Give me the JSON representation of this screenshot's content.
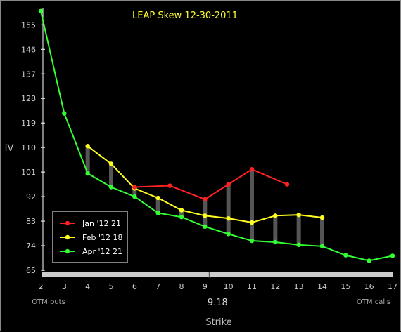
{
  "chart_data": {
    "type": "line",
    "title": "LEAP Skew 12-30-2011",
    "xlabel": "Strike",
    "ylabel": "IV",
    "x_ticks": [
      2,
      3,
      4,
      5,
      6,
      7,
      8,
      9,
      10,
      11,
      12,
      13,
      14,
      15,
      16,
      17
    ],
    "y_ticks": [
      65,
      74,
      83,
      92,
      101,
      110,
      119,
      128,
      137,
      146,
      155
    ],
    "xlim": [
      2,
      17
    ],
    "ylim": [
      65,
      161
    ],
    "underlying_price": "9.18",
    "underlying_value": 9.18,
    "corner_labels": {
      "left": "OTM puts",
      "right": "OTM calls"
    },
    "legend_position": "bottom-left",
    "series": [
      {
        "name": "Jan '12 21",
        "color": "#ff2222",
        "points": [
          [
            6,
            95.5
          ],
          [
            7.5,
            96
          ],
          [
            9,
            91
          ],
          [
            10,
            96.5
          ],
          [
            11,
            102
          ],
          [
            12.5,
            96.5
          ]
        ]
      },
      {
        "name": "Feb '12 18",
        "color": "#ffff22",
        "points": [
          [
            4,
            110.5
          ],
          [
            5,
            104
          ],
          [
            6,
            95
          ],
          [
            7,
            91.5
          ],
          [
            8,
            87
          ],
          [
            9,
            85
          ],
          [
            10,
            84
          ],
          [
            11,
            82.5
          ],
          [
            12,
            85
          ],
          [
            13,
            85.3
          ],
          [
            14,
            84.3
          ]
        ]
      },
      {
        "name": "Apr '12 21",
        "color": "#33ff33",
        "points": [
          [
            2,
            160
          ],
          [
            3,
            122.5
          ],
          [
            4,
            100.5
          ],
          [
            5,
            95.5
          ],
          [
            6,
            92
          ],
          [
            7,
            86
          ],
          [
            8,
            84.5
          ],
          [
            9,
            81
          ],
          [
            10,
            78.3
          ],
          [
            11,
            75.8
          ],
          [
            12,
            75.3
          ],
          [
            13,
            74.3
          ],
          [
            14,
            73.8
          ],
          [
            15,
            70.5
          ],
          [
            16,
            68.5
          ],
          [
            17,
            70.3
          ]
        ]
      }
    ],
    "spread_bars": [
      {
        "x": 4,
        "low": 100.5,
        "high": 110.5
      },
      {
        "x": 5,
        "low": 95.5,
        "high": 104
      },
      {
        "x": 6,
        "low": 92,
        "high": 95.5
      },
      {
        "x": 7,
        "low": 86,
        "high": 91.5
      },
      {
        "x": 8,
        "low": 84.5,
        "high": 87
      },
      {
        "x": 9,
        "low": 81,
        "high": 91
      },
      {
        "x": 10,
        "low": 78.3,
        "high": 96.5
      },
      {
        "x": 11,
        "low": 75.8,
        "high": 102
      },
      {
        "x": 12,
        "low": 75.3,
        "high": 85
      },
      {
        "x": 13,
        "low": 74.3,
        "high": 85.3
      },
      {
        "x": 14,
        "low": 73.8,
        "high": 84.3
      }
    ]
  }
}
